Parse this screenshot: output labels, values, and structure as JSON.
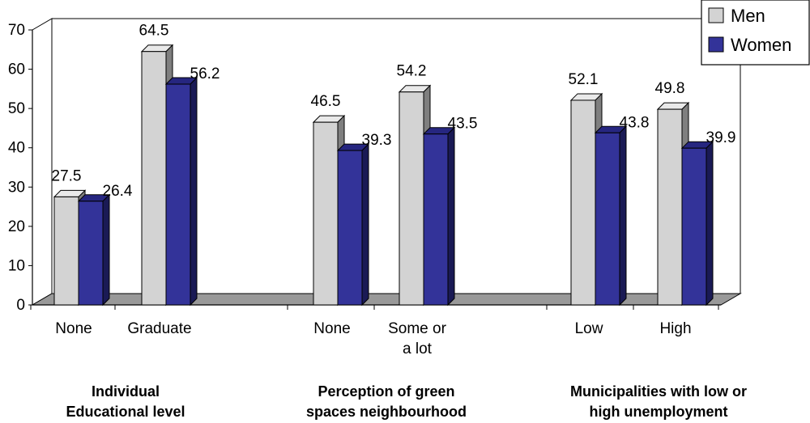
{
  "chart_data": {
    "type": "bar",
    "title": "",
    "xlabel": "",
    "ylabel": "",
    "ylim": [
      0,
      70
    ],
    "yticks": [
      "0",
      "10",
      "20",
      "30",
      "40",
      "50",
      "60",
      "70"
    ],
    "grid": false,
    "legend_position": "top-right",
    "categories": [
      "None",
      "Graduate",
      "None",
      "Some or a lot",
      "Low",
      "High"
    ],
    "category_lines": [
      [
        "None"
      ],
      [
        "Graduate"
      ],
      [
        "None"
      ],
      [
        "Some or",
        "a lot"
      ],
      [
        "Low"
      ],
      [
        "High"
      ]
    ],
    "groups": [
      {
        "label_lines": [
          "Individual",
          "Educational level"
        ],
        "categories": [
          0,
          1
        ]
      },
      {
        "label_lines": [
          "Perception of green",
          "spaces neighbourhood"
        ],
        "categories": [
          2,
          3
        ]
      },
      {
        "label_lines": [
          "Municipalities with low or",
          "high unemployment"
        ],
        "categories": [
          4,
          5
        ]
      }
    ],
    "series": [
      {
        "name": "Men",
        "color": "#d3d3d3",
        "side_color": "#7f7f7f",
        "top_color": "#e9e9e9",
        "values": [
          27.5,
          64.5,
          46.5,
          54.2,
          52.1,
          49.8
        ],
        "labels": [
          "27.5",
          "64.5",
          "46.5",
          "54.2",
          "52.1",
          "49.8"
        ]
      },
      {
        "name": "Women",
        "color": "#333399",
        "side_color": "#1a1a55",
        "top_color": "#262680",
        "values": [
          26.4,
          56.2,
          39.3,
          43.5,
          43.8,
          39.9
        ],
        "labels": [
          "26.4",
          "56.2",
          "39.3",
          "43.5",
          "43.8",
          "39.9"
        ]
      }
    ],
    "floor_color": "#999999"
  }
}
